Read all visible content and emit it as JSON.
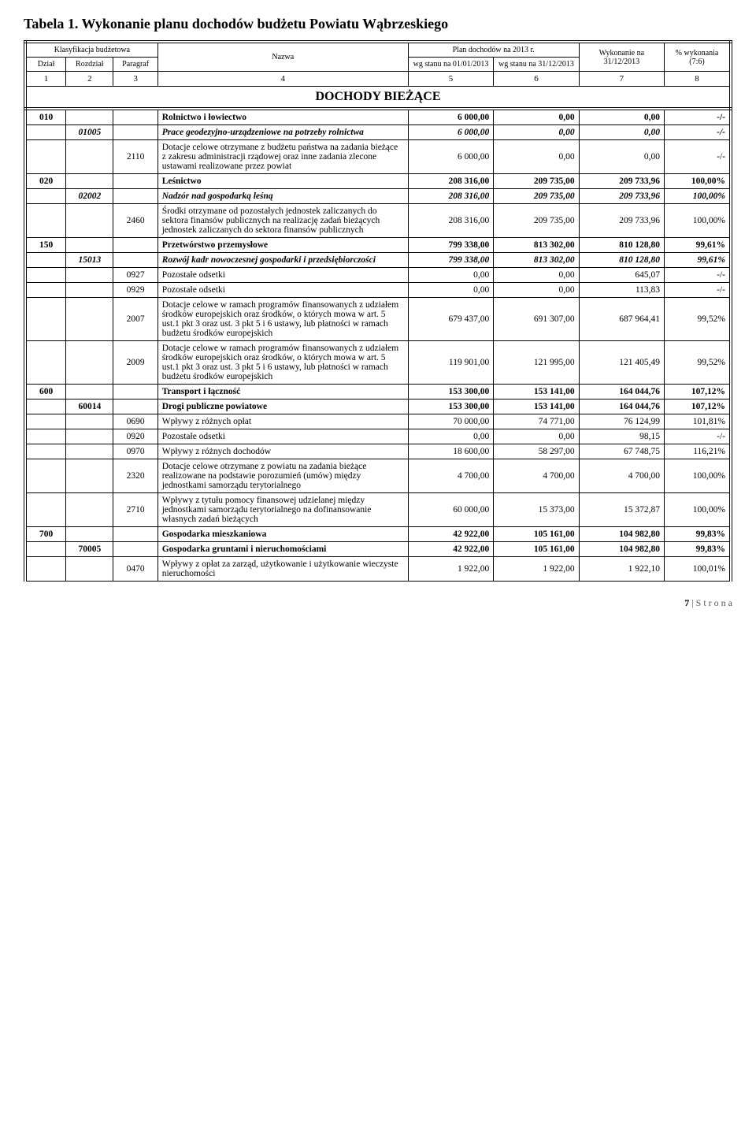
{
  "title": "Tabela 1. Wykonanie planu dochodów budżetu Powiatu Wąbrzeskiego",
  "headers": {
    "klasyfikacja": "Klasyfikacja budżetowa",
    "dzial": "Dział",
    "rozdzial": "Rozdział",
    "paragraf": "Paragraf",
    "nazwa": "Nazwa",
    "plan": "Plan dochodów na 2013 r.",
    "wg1": "wg stanu na 01/01/2013",
    "wg2": "wg stanu na 31/12/2013",
    "wyk": "Wykonanie na 31/12/2013",
    "pct": "% wykonania (7:6)",
    "cols": [
      "1",
      "2",
      "3",
      "4",
      "5",
      "6",
      "7",
      "8"
    ],
    "section": "DOCHODY BIEŻĄCE"
  },
  "rows": [
    {
      "dz": "010",
      "rz": "",
      "pa": "",
      "n": "Rolnictwo i łowiectwo",
      "v": [
        "6 000,00",
        "0,00",
        "0,00",
        "-/-"
      ],
      "b": true,
      "tdl": true
    },
    {
      "dz": "",
      "rz": "01005",
      "pa": "",
      "n": "Prace geodezyjno-urządzeniowe na potrzeby rolnictwa",
      "v": [
        "6 000,00",
        "0,00",
        "0,00",
        "-/-"
      ],
      "b": true,
      "i": true
    },
    {
      "dz": "",
      "rz": "",
      "pa": "2110",
      "n": "Dotacje celowe otrzymane z budżetu państwa na zadania bieżące z zakresu administracji rządowej oraz inne zadania zlecone ustawami realizowane przez powiat",
      "v": [
        "6 000,00",
        "0,00",
        "0,00",
        "-/-"
      ]
    },
    {
      "dz": "020",
      "rz": "",
      "pa": "",
      "n": "Leśnictwo",
      "v": [
        "208 316,00",
        "209 735,00",
        "209 733,96",
        "100,00%"
      ],
      "b": true
    },
    {
      "dz": "",
      "rz": "02002",
      "pa": "",
      "n": "Nadzór nad gospodarką leśną",
      "v": [
        "208 316,00",
        "209 735,00",
        "209 733,96",
        "100,00%"
      ],
      "b": true,
      "i": true
    },
    {
      "dz": "",
      "rz": "",
      "pa": "2460",
      "n": "Środki otrzymane od pozostałych jednostek zaliczanych do sektora finansów publicznych na realizację zadań bieżących jednostek zaliczanych do sektora finansów publicznych",
      "v": [
        "208 316,00",
        "209 735,00",
        "209 733,96",
        "100,00%"
      ]
    },
    {
      "dz": "150",
      "rz": "",
      "pa": "",
      "n": "Przetwórstwo przemysłowe",
      "v": [
        "799 338,00",
        "813 302,00",
        "810 128,80",
        "99,61%"
      ],
      "b": true
    },
    {
      "dz": "",
      "rz": "15013",
      "pa": "",
      "n": "Rozwój kadr nowoczesnej gospodarki i przedsiębiorczości",
      "v": [
        "799 338,00",
        "813 302,00",
        "810 128,80",
        "99,61%"
      ],
      "b": true,
      "i": true
    },
    {
      "dz": "",
      "rz": "",
      "pa": "0927",
      "n": "Pozostałe odsetki",
      "v": [
        "0,00",
        "0,00",
        "645,07",
        "-/-"
      ]
    },
    {
      "dz": "",
      "rz": "",
      "pa": "0929",
      "n": "Pozostałe odsetki",
      "v": [
        "0,00",
        "0,00",
        "113,83",
        "-/-"
      ]
    },
    {
      "dz": "",
      "rz": "",
      "pa": "2007",
      "n": "Dotacje celowe w ramach programów finansowanych z udziałem środków europejskich oraz środków, o których mowa w art. 5 ust.1 pkt 3 oraz ust. 3 pkt 5 i 6 ustawy, lub płatności w ramach budżetu środków europejskich",
      "v": [
        "679 437,00",
        "691 307,00",
        "687 964,41",
        "99,52%"
      ]
    },
    {
      "dz": "",
      "rz": "",
      "pa": "2009",
      "n": "Dotacje celowe w ramach programów finansowanych z udziałem środków europejskich oraz środków, o których mowa w art. 5 ust.1 pkt 3 oraz ust. 3 pkt 5 i 6 ustawy, lub płatności w ramach budżetu środków europejskich",
      "v": [
        "119 901,00",
        "121 995,00",
        "121 405,49",
        "99,52%"
      ]
    },
    {
      "dz": "600",
      "rz": "",
      "pa": "",
      "n": "Transport i łączność",
      "v": [
        "153 300,00",
        "153 141,00",
        "164 044,76",
        "107,12%"
      ],
      "b": true
    },
    {
      "dz": "",
      "rz": "60014",
      "pa": "",
      "n": "Drogi publiczne powiatowe",
      "v": [
        "153 300,00",
        "153 141,00",
        "164 044,76",
        "107,12%"
      ],
      "b": true
    },
    {
      "dz": "",
      "rz": "",
      "pa": "0690",
      "n": "Wpływy z różnych opłat",
      "v": [
        "70 000,00",
        "74 771,00",
        "76 124,99",
        "101,81%"
      ]
    },
    {
      "dz": "",
      "rz": "",
      "pa": "0920",
      "n": "Pozostałe odsetki",
      "v": [
        "0,00",
        "0,00",
        "98,15",
        "-/-"
      ]
    },
    {
      "dz": "",
      "rz": "",
      "pa": "0970",
      "n": "Wpływy z różnych dochodów",
      "v": [
        "18 600,00",
        "58 297,00",
        "67 748,75",
        "116,21%"
      ]
    },
    {
      "dz": "",
      "rz": "",
      "pa": "2320",
      "n": "Dotacje celowe otrzymane z powiatu na zadania bieżące realizowane na podstawie porozumień (umów) między jednostkami samorządu terytorialnego",
      "v": [
        "4 700,00",
        "4 700,00",
        "4 700,00",
        "100,00%"
      ]
    },
    {
      "dz": "",
      "rz": "",
      "pa": "2710",
      "n": "Wpływy z tytułu pomocy finansowej udzielanej między jednostkami samorządu terytorialnego na dofinansowanie własnych zadań bieżących",
      "v": [
        "60 000,00",
        "15 373,00",
        "15 372,87",
        "100,00%"
      ]
    },
    {
      "dz": "700",
      "rz": "",
      "pa": "",
      "n": "Gospodarka mieszkaniowa",
      "v": [
        "42 922,00",
        "105 161,00",
        "104 982,80",
        "99,83%"
      ],
      "b": true
    },
    {
      "dz": "",
      "rz": "70005",
      "pa": "",
      "n": "Gospodarka gruntami i nieruchomościami",
      "v": [
        "42 922,00",
        "105 161,00",
        "104 982,80",
        "99,83%"
      ],
      "b": true
    },
    {
      "dz": "",
      "rz": "",
      "pa": "0470",
      "n": "Wpływy z opłat za zarząd, użytkowanie i użytkowanie wieczyste nieruchomości",
      "v": [
        "1 922,00",
        "1 922,00",
        "1 922,10",
        "100,01%"
      ]
    }
  ],
  "footer": {
    "page": "7",
    "label": "S t r o n a"
  }
}
